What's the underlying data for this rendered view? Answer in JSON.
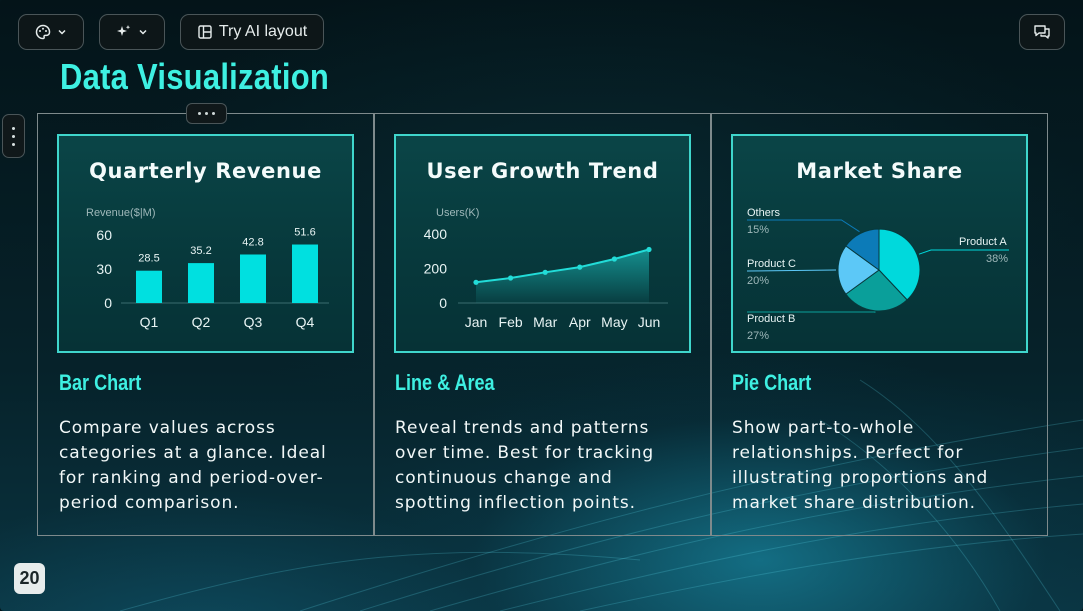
{
  "toolbar": {
    "layout_label": "Try AI layout",
    "icons": {
      "theme": "palette-icon",
      "ai": "sparkles-icon",
      "layout": "layout-icon",
      "comment": "comments-icon",
      "chevron": "chevron-down-icon"
    }
  },
  "slide": {
    "title": "Data Visualization",
    "page_number": "20",
    "accent_color": "#3ef0e2",
    "bar_color": "#00e0e0"
  },
  "cards": [
    {
      "chart_title": "Quarterly Revenue",
      "heading": "Bar Chart",
      "description": "Compare values across categories at a glance. Ideal for ranking and period-over-period comparison."
    },
    {
      "chart_title": "User Growth Trend",
      "heading": "Line & Area",
      "description": "Reveal trends and patterns over time. Best for tracking continuous change and spotting inflection points."
    },
    {
      "chart_title": "Market Share",
      "heading": "Pie Chart",
      "description": "Show part-to-whole relationships. Perfect for illustrating proportions and market share distribution."
    }
  ],
  "chart_data": [
    {
      "type": "bar",
      "title": "Quarterly Revenue",
      "ylabel": "Revenue($|M)",
      "categories": [
        "Q1",
        "Q2",
        "Q3",
        "Q4"
      ],
      "values": [
        28.5,
        35.2,
        42.8,
        51.6
      ],
      "value_labels": [
        "28.5",
        "35.2",
        "42.8",
        "51.6"
      ],
      "yticks": [
        "0",
        "30",
        "60"
      ],
      "ylim": [
        0,
        60
      ]
    },
    {
      "type": "area",
      "title": "User Growth Trend",
      "ylabel": "Users(K)",
      "categories": [
        "Jan",
        "Feb",
        "Mar",
        "Apr",
        "May",
        "Jun"
      ],
      "values": [
        120,
        145,
        178,
        208,
        255,
        310
      ],
      "yticks": [
        "0",
        "200",
        "400"
      ],
      "ylim": [
        0,
        400
      ]
    },
    {
      "type": "pie",
      "title": "Market Share",
      "slices": [
        {
          "name": "Product A",
          "pct_label": "38%",
          "value": 38,
          "color": "#00d9dc"
        },
        {
          "name": "Product B",
          "pct_label": "27%",
          "value": 27,
          "color": "#0a9f9a"
        },
        {
          "name": "Product C",
          "pct_label": "20%",
          "value": 20,
          "color": "#5cc8f7"
        },
        {
          "name": "Others",
          "pct_label": "15%",
          "value": 15,
          "color": "#0c7bb8"
        }
      ]
    }
  ]
}
